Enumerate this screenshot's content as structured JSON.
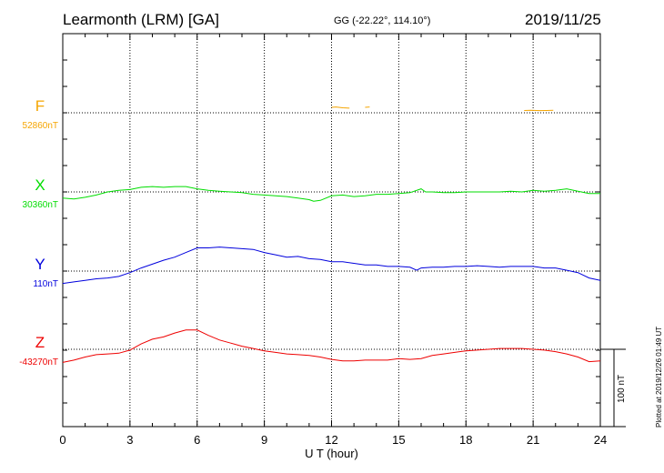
{
  "header": {
    "station": "Learmonth (LRM)  [GA]",
    "coords": "GG (-22.22°, 114.10°)",
    "date": "2019/11/25"
  },
  "plotted_note": "Plotted at 2019/12/26 01:49 UT",
  "scale_bar": {
    "label": "100 nT",
    "value_nT": 100
  },
  "colors": {
    "F": "#f5a500",
    "X": "#00dd00",
    "Y": "#0000dd",
    "Z": "#ee0000",
    "axis": "#000000"
  },
  "chart_data": {
    "type": "line",
    "title": "Learmonth (LRM)  [GA]",
    "xlabel": "U T (hour)",
    "xlim": [
      0,
      24
    ],
    "xticks": [
      0,
      3,
      6,
      9,
      12,
      15,
      18,
      21,
      24
    ],
    "grid": true,
    "series": [
      {
        "name": "F",
        "baseline_label": "52860nT",
        "baseline_nT": 52860,
        "segments": [
          [
            [
              12.0,
              7.0
            ],
            [
              12.2,
              7.5
            ],
            [
              12.5,
              6.5
            ],
            [
              12.8,
              6.0
            ]
          ],
          [
            [
              13.5,
              7.0
            ],
            [
              13.7,
              7.5
            ]
          ],
          [
            [
              20.6,
              3.0
            ],
            [
              20.9,
              3.2
            ],
            [
              21.3,
              2.8
            ],
            [
              21.6,
              3.0
            ],
            [
              21.9,
              3.2
            ]
          ]
        ]
      },
      {
        "name": "X",
        "baseline_label": "30360nT",
        "baseline_nT": 30360,
        "values": [
          [
            0,
            -8
          ],
          [
            0.5,
            -9
          ],
          [
            1,
            -7
          ],
          [
            1.5,
            -4
          ],
          [
            2,
            0
          ],
          [
            2.5,
            2
          ],
          [
            3,
            3
          ],
          [
            3.5,
            6
          ],
          [
            4,
            7
          ],
          [
            4.5,
            6
          ],
          [
            5,
            7
          ],
          [
            5.5,
            7
          ],
          [
            6,
            4
          ],
          [
            6.5,
            2
          ],
          [
            7,
            1
          ],
          [
            7.5,
            0
          ],
          [
            8,
            -1
          ],
          [
            8.5,
            -3
          ],
          [
            9,
            -4
          ],
          [
            9.5,
            -5
          ],
          [
            10,
            -6
          ],
          [
            10.5,
            -8
          ],
          [
            11,
            -10
          ],
          [
            11.2,
            -12
          ],
          [
            11.5,
            -11
          ],
          [
            12,
            -5
          ],
          [
            12.5,
            -4
          ],
          [
            13,
            -6
          ],
          [
            13.5,
            -5
          ],
          [
            14,
            -3
          ],
          [
            14.5,
            -3
          ],
          [
            15,
            -2
          ],
          [
            15.5,
            -1
          ],
          [
            16,
            4
          ],
          [
            16.2,
            0
          ],
          [
            16.5,
            0
          ],
          [
            17,
            -1
          ],
          [
            17.5,
            -1
          ],
          [
            18,
            0
          ],
          [
            18.5,
            0
          ],
          [
            19,
            0
          ],
          [
            19.5,
            0
          ],
          [
            20,
            1
          ],
          [
            20.5,
            0
          ],
          [
            21,
            2
          ],
          [
            21.5,
            1
          ],
          [
            22,
            2
          ],
          [
            22.5,
            4
          ],
          [
            23,
            1
          ],
          [
            23.5,
            -2
          ],
          [
            24,
            -2
          ]
        ]
      },
      {
        "name": "Y",
        "baseline_label": "110nT",
        "baseline_nT": 110,
        "values": [
          [
            0,
            -16
          ],
          [
            0.5,
            -14
          ],
          [
            1,
            -12
          ],
          [
            1.5,
            -10
          ],
          [
            2,
            -9
          ],
          [
            2.5,
            -7
          ],
          [
            3,
            -2
          ],
          [
            3.5,
            4
          ],
          [
            4,
            9
          ],
          [
            4.5,
            14
          ],
          [
            5,
            18
          ],
          [
            5.5,
            24
          ],
          [
            6,
            30
          ],
          [
            6.5,
            30
          ],
          [
            7,
            31
          ],
          [
            7.5,
            30
          ],
          [
            8,
            29
          ],
          [
            8.5,
            28
          ],
          [
            9,
            24
          ],
          [
            9.5,
            21
          ],
          [
            10,
            18
          ],
          [
            10.5,
            19
          ],
          [
            11,
            16
          ],
          [
            11.5,
            15
          ],
          [
            12,
            12
          ],
          [
            12.5,
            12
          ],
          [
            13,
            10
          ],
          [
            13.5,
            8
          ],
          [
            14,
            8
          ],
          [
            14.5,
            6
          ],
          [
            15,
            6
          ],
          [
            15.5,
            5
          ],
          [
            15.8,
            1
          ],
          [
            16,
            4
          ],
          [
            16.5,
            5
          ],
          [
            17,
            5
          ],
          [
            17.5,
            6
          ],
          [
            18,
            6
          ],
          [
            18.5,
            7
          ],
          [
            19,
            6
          ],
          [
            19.5,
            5
          ],
          [
            20,
            6
          ],
          [
            20.5,
            6
          ],
          [
            21,
            6
          ],
          [
            21.5,
            4
          ],
          [
            22,
            4
          ],
          [
            22.5,
            1
          ],
          [
            23,
            -2
          ],
          [
            23.5,
            -9
          ],
          [
            24,
            -12
          ]
        ]
      },
      {
        "name": "Z",
        "baseline_label": "-43270nT",
        "baseline_nT": -43270,
        "values": [
          [
            0,
            -17
          ],
          [
            0.5,
            -14
          ],
          [
            1,
            -10
          ],
          [
            1.5,
            -7
          ],
          [
            2,
            -6
          ],
          [
            2.5,
            -5
          ],
          [
            3,
            -1
          ],
          [
            3.5,
            7
          ],
          [
            4,
            13
          ],
          [
            4.5,
            16
          ],
          [
            5,
            21
          ],
          [
            5.5,
            25
          ],
          [
            6,
            25
          ],
          [
            6.5,
            18
          ],
          [
            7,
            12
          ],
          [
            7.5,
            8
          ],
          [
            8,
            4
          ],
          [
            8.5,
            1
          ],
          [
            9,
            -2
          ],
          [
            9.5,
            -4
          ],
          [
            10,
            -6
          ],
          [
            10.5,
            -7
          ],
          [
            11,
            -8
          ],
          [
            11.5,
            -10
          ],
          [
            12,
            -13
          ],
          [
            12.5,
            -15
          ],
          [
            13,
            -15
          ],
          [
            13.5,
            -14
          ],
          [
            14,
            -14
          ],
          [
            14.5,
            -14
          ],
          [
            15,
            -12
          ],
          [
            15.5,
            -13
          ],
          [
            16,
            -12
          ],
          [
            16.5,
            -8
          ],
          [
            17,
            -6
          ],
          [
            17.5,
            -4
          ],
          [
            18,
            -2
          ],
          [
            18.5,
            -1
          ],
          [
            19,
            0
          ],
          [
            19.5,
            1
          ],
          [
            20,
            1
          ],
          [
            20.5,
            1
          ],
          [
            21,
            0
          ],
          [
            21.5,
            -1
          ],
          [
            22,
            -3
          ],
          [
            22.5,
            -6
          ],
          [
            23,
            -10
          ],
          [
            23.5,
            -16
          ],
          [
            24,
            -15
          ]
        ]
      }
    ]
  }
}
